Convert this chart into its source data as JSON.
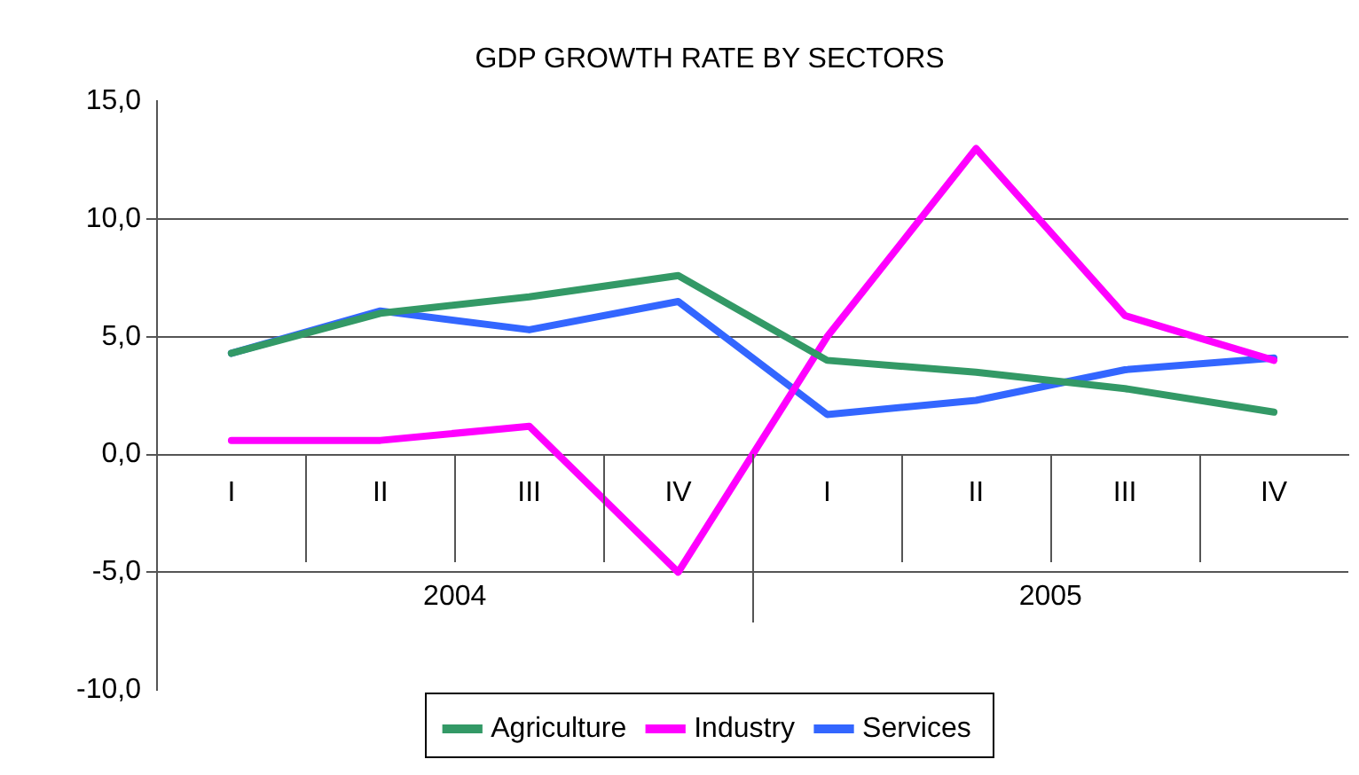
{
  "chart_data": {
    "type": "line",
    "title": "GDP GROWTH RATE BY SECTORS",
    "categories": [
      "I",
      "II",
      "III",
      "IV",
      "I",
      "II",
      "III",
      "IV"
    ],
    "annotations": [
      "2004",
      "2005"
    ],
    "series": [
      {
        "name": "Agriculture",
        "color": "#339966",
        "values": [
          4.3,
          6.0,
          6.7,
          7.6,
          4.0,
          3.5,
          2.8,
          1.8
        ]
      },
      {
        "name": "Industry",
        "color": "#ff00ff",
        "values": [
          0.6,
          0.6,
          1.2,
          -5.0,
          5.0,
          13.0,
          5.9,
          4.0
        ]
      },
      {
        "name": "Services",
        "color": "#3366ff",
        "values": [
          4.3,
          6.1,
          5.3,
          6.5,
          1.7,
          2.3,
          3.6,
          4.1
        ]
      }
    ],
    "ylim": [
      -10,
      15
    ],
    "yticks": [
      {
        "value": -10,
        "label": "-10,0"
      },
      {
        "value": -5,
        "label": "-5,0"
      },
      {
        "value": 0,
        "label": "0,0"
      },
      {
        "value": 5,
        "label": "5,0"
      },
      {
        "value": 10,
        "label": "10,0"
      },
      {
        "value": 15,
        "label": "15,0"
      }
    ],
    "grid": "y",
    "legend": "bottom",
    "marker": "none",
    "line_style": "solid"
  }
}
